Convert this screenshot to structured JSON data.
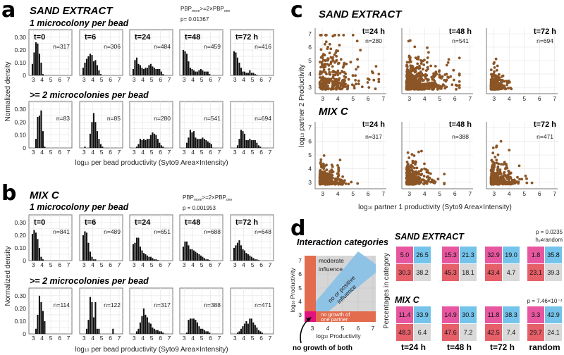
{
  "panel_a": {
    "letter": "a",
    "title": "SAND EXTRACT",
    "row_labels": [
      "1 microcolony per bead",
      ">= 2 microcolonies per bead"
    ],
    "stat": {
      "p1": "PBP",
      "s1": "more",
      "p2": ">=2×PBP",
      "s2": "one"
    },
    "p_value": "p= 0.01367",
    "ylabel": "Normalized density",
    "xlabel": {
      "pre": "log",
      "sub": "10",
      "rest": " per bead productivity (Syto9 Area×Intensity)"
    }
  },
  "panel_b": {
    "letter": "b",
    "title": "MIX C",
    "row_labels": [
      "1 microcolony per bead",
      ">= 2 microcolonies per bead"
    ],
    "stat": {
      "p1": "PBP",
      "s1": "more",
      "p2": ">=2×PBP",
      "s2": "one"
    },
    "p_value": "p = 0.001953",
    "ylabel": "Normalized density",
    "xlabel": {
      "pre": "log",
      "sub": "10",
      "rest": " per bead productivity (Syto9 Area×Intensity)"
    }
  },
  "panel_c": {
    "letter": "c",
    "ylabel": {
      "pre": "log",
      "sub": "10",
      "rest": " partner 2 Productivity"
    },
    "xlabel": {
      "pre": "log",
      "sub": "10",
      "rest": " partner 1 productivity (Syto9 Area×Intensity)"
    }
  },
  "panel_d": {
    "letter": "d",
    "diagram_title": "Interaction categories",
    "categories": {
      "moderate": [
        "moderate",
        "influence"
      ],
      "positive": [
        "no or positive",
        "influence"
      ],
      "one": [
        "no growth of",
        "one partner"
      ],
      "both": "no growth of both"
    },
    "diagram_ylabel": {
      "pre": "log",
      "sub": "10",
      "rest": " Productivity"
    },
    "diagram_xlabel": {
      "pre": "log",
      "sub": "10",
      "rest": " Productivity"
    },
    "ylabel": "Percentages in category"
  },
  "colors": {
    "bars": "#111111",
    "points": "#8b5526",
    "no_growth_both": "#e6579f",
    "no_or_positive": "#74c3ea",
    "no_growth_one": "#e6606a",
    "moderate": "#d9d9d9",
    "diagram_orange": "#e36b4e",
    "diagram_magenta": "#e2137e",
    "diagram_blue": "#8fc3e6"
  },
  "chart_data": [
    {
      "type": "bar",
      "title": "SAND EXTRACT",
      "bin_start": 2.8,
      "bin_width": 0.2,
      "xlim": [
        2.5,
        7.4
      ],
      "ylim": [
        0,
        0.36
      ],
      "xticks": [
        "3",
        "4",
        "5",
        "6",
        "7"
      ],
      "yticks": [
        "0",
        "0.10",
        "0.20",
        "0.30"
      ],
      "rows": [
        {
          "label": "1 microcolony per bead",
          "panels": [
            {
              "time": "t=0",
              "n": "n=317",
              "values": [
                0.09,
                0.18,
                0.26,
                0.25,
                0.17,
                0.1,
                0.01
              ]
            },
            {
              "time": "t=6",
              "n": "n=306",
              "values": [
                0.06,
                0.1,
                0.13,
                0.15,
                0.17,
                0.16,
                0.11,
                0.12,
                0.08,
                0.04,
                0.01
              ]
            },
            {
              "time": "t=24",
              "n": "n=484",
              "values": [
                0.05,
                0.12,
                0.14,
                0.09,
                0.08,
                0.06,
                0.05,
                0.06,
                0.06,
                0.08,
                0.09,
                0.07,
                0.06,
                0.05,
                0.05,
                0.05,
                0.03,
                0.01
              ]
            },
            {
              "time": "t=48",
              "n": "n=459",
              "values": [
                0.2,
                0.19,
                0.17,
                0.11,
                0.06,
                0.05,
                0.04,
                0.03,
                0.03,
                0.04,
                0.05,
                0.04,
                0.03,
                0.03,
                0.03,
                0.01
              ]
            },
            {
              "time": "t=72 h",
              "n": "n=416",
              "values": [
                0.19,
                0.18,
                0.14,
                0.1,
                0.06,
                0.03,
                0.03,
                0.02,
                0.02,
                0.04,
                0.02,
                0.02,
                0.01,
                0.005
              ]
            }
          ]
        },
        {
          "label": ">= 2 microcolonies per bead",
          "panels": [
            {
              "time": "",
              "n": "n=83",
              "values": [
                0,
                0,
                0.07,
                0.24,
                0.25,
                0.29,
                0.13,
                0.01
              ]
            },
            {
              "time": "",
              "n": "n=85",
              "values": [
                0,
                0.01,
                0,
                0,
                0.11,
                0.2,
                0.27,
                0.2,
                0.13,
                0.07,
                0.03,
                0.01
              ]
            },
            {
              "time": "",
              "n": "n=280",
              "values": [
                0,
                0,
                0.01,
                0.03,
                0.07,
                0.06,
                0.07,
                0.06,
                0.07,
                0.07,
                0.1,
                0.12,
                0.11,
                0.1,
                0.07,
                0.04,
                0.02,
                0.01
              ]
            },
            {
              "time": "",
              "n": "n=541",
              "values": [
                0,
                0,
                0.04,
                0.08,
                0.14,
                0.12,
                0.13,
                0.08,
                0.07,
                0.07,
                0.07,
                0.08,
                0.07,
                0.06,
                0.05,
                0.04,
                0.03
              ]
            },
            {
              "time": "",
              "n": "n=694",
              "values": [
                0,
                0,
                0.02,
                0.07,
                0.14,
                0.13,
                0.11,
                0.06,
                0.06,
                0.07,
                0.06,
                0.06,
                0.06,
                0.04,
                0.02,
                0.01
              ]
            }
          ]
        }
      ]
    },
    {
      "type": "bar",
      "title": "MIX C",
      "bin_start": 2.8,
      "bin_width": 0.2,
      "xlim": [
        2.5,
        7.4
      ],
      "ylim": [
        0,
        0.36
      ],
      "xticks": [
        "3",
        "4",
        "5",
        "6",
        "7"
      ],
      "yticks": [
        "0",
        "0.10",
        "0.20",
        "0.30"
      ],
      "rows": [
        {
          "label": "1 microcolony per bead",
          "panels": [
            {
              "time": "t=0",
              "n": "n=841",
              "values": [
                0.21,
                0.24,
                0.22,
                0.17,
                0.1,
                0.03,
                0.01
              ]
            },
            {
              "time": "t=6",
              "n": "n=489",
              "values": [
                0.2,
                0.23,
                0.22,
                0.14,
                0.07,
                0.03,
                0.01,
                0.01
              ]
            },
            {
              "time": "t=24",
              "n": "n=651",
              "values": [
                0.13,
                0.14,
                0.18,
                0.18,
                0.11,
                0.08,
                0.06,
                0.05,
                0.04,
                0.03,
                0.03,
                0.02,
                0.01,
                0.01,
                0.005
              ]
            },
            {
              "time": "t=48",
              "n": "n=688",
              "values": [
                0.11,
                0.15,
                0.15,
                0.12,
                0.09,
                0.09,
                0.08,
                0.07,
                0.06,
                0.05,
                0.04,
                0.03,
                0.02,
                0.01,
                0.01,
                0.005
              ]
            },
            {
              "time": "t=72 h",
              "n": "n=648",
              "values": [
                0.1,
                0.12,
                0.14,
                0.16,
                0.12,
                0.09,
                0.08,
                0.06,
                0.05,
                0.04,
                0.03,
                0.02,
                0.01,
                0.01,
                0.005
              ]
            }
          ]
        },
        {
          "label": ">= 2 microcolonies per bead",
          "panels": [
            {
              "time": "",
              "n": "n=114",
              "values": [
                0,
                0,
                0.04,
                0.15,
                0.3,
                0.25,
                0.18,
                0.1
              ]
            },
            {
              "time": "",
              "n": "n=122",
              "values": [
                0,
                0,
                0.04,
                0.11,
                0.29,
                0.25,
                0.13,
                0.25,
                0.04,
                0.04,
                0,
                0,
                0,
                0,
                0,
                0,
                0,
                0.04
              ]
            },
            {
              "time": "",
              "n": "n=317",
              "values": [
                0,
                0,
                0.02,
                0.04,
                0.09,
                0.14,
                0.2,
                0.15,
                0.13,
                0.09,
                0.08,
                0.05,
                0.04,
                0.03,
                0.03,
                0.02,
                0.02,
                0.01
              ]
            },
            {
              "time": "",
              "n": "n=388",
              "values": [
                0,
                0,
                0.01,
                0.11,
                0.12,
                0.12,
                0.12,
                0.11,
                0.09,
                0.06,
                0.04,
                0.04,
                0.03,
                0.02,
                0.02,
                0.01
              ]
            },
            {
              "time": "",
              "n": "n=471",
              "values": [
                0,
                0,
                0.01,
                0.02,
                0.04,
                0.06,
                0.08,
                0.1,
                0.08,
                0.12,
                0.12,
                0.09,
                0.07,
                0.05,
                0.03,
                0.02,
                0.01
              ]
            }
          ]
        }
      ]
    },
    {
      "type": "scatter",
      "xlim": [
        2.5,
        7.2
      ],
      "ylim": [
        2.53,
        7.42
      ],
      "xticks": [
        "3",
        "4",
        "5",
        "6",
        "7"
      ],
      "yticks": [
        "3",
        "4",
        "5",
        "6",
        "7"
      ],
      "note": "points sampled from per-panel spread (mean excess above log10=2.8 in x and y) and count",
      "rows": [
        {
          "title": "SAND EXTRACT",
          "panels": [
            {
              "time": "t=24 h",
              "n": "n=280",
              "count": 280,
              "spread_x": 1.0,
              "spread_y": 1.1,
              "max_x": 6.7,
              "max_y": 6.9
            },
            {
              "time": "t=48 h",
              "n": "n=541",
              "count": 541,
              "spread_x": 0.8,
              "spread_y": 0.7,
              "max_x": 6.3,
              "max_y": 6.5
            },
            {
              "time": "t=72 h",
              "n": "n=694",
              "count": 300,
              "spread_x": 0.3,
              "spread_y": 0.35,
              "max_x": 5.3,
              "max_y": 5.8
            }
          ]
        },
        {
          "title": "MIX C",
          "panels": [
            {
              "time": "t=24 h",
              "n": "n=317",
              "count": 317,
              "spread_x": 0.4,
              "spread_y": 0.4,
              "max_x": 5.3,
              "max_y": 5.1
            },
            {
              "time": "t=48 h",
              "n": "n=388",
              "count": 300,
              "spread_x": 0.5,
              "spread_y": 0.45,
              "max_x": 5.3,
              "max_y": 5.6
            },
            {
              "time": "t=72 h",
              "n": "n=471",
              "count": 350,
              "spread_x": 0.5,
              "spread_y": 0.5,
              "max_x": 5.8,
              "max_y": 6.0
            }
          ]
        }
      ]
    },
    {
      "type": "heatmap",
      "cell_order": [
        "no growth of both",
        "no or positive influence",
        "no growth of one partner",
        "moderate influence"
      ],
      "groups": [
        {
          "name": "SAND EXTRACT",
          "p": "p = 0.0235",
          "note": "h₁≠random",
          "blocks": [
            {
              "label": "t=24 h",
              "cells": [
                "5.0",
                "26.5",
                "30.3",
                "38.2"
              ]
            },
            {
              "label": "t=48 h",
              "cells": [
                "15.3",
                "21.3",
                "45.3",
                "18.1"
              ]
            },
            {
              "label": "t=72 h",
              "cells": [
                "32.9",
                "19.0",
                "43.4",
                "4.7"
              ]
            },
            {
              "label": "random",
              "cells": [
                "1.8",
                "35.8",
                "23.1",
                "39.3"
              ]
            }
          ]
        },
        {
          "name": "MIX C",
          "p": "p = 7.46×10⁻⁴",
          "note": "",
          "blocks": [
            {
              "label": "t=24 h",
              "cells": [
                "11.4",
                "33.9",
                "48.3",
                "6.4"
              ]
            },
            {
              "label": "t=48 h",
              "cells": [
                "14.9",
                "30.3",
                "47.6",
                "7.2"
              ]
            },
            {
              "label": "t=72 h",
              "cells": [
                "11.8",
                "38.3",
                "42.5",
                "7.4"
              ]
            },
            {
              "label": "random",
              "cells": [
                "3.3",
                "42.9",
                "29.7",
                "24.1"
              ]
            }
          ]
        }
      ]
    }
  ]
}
